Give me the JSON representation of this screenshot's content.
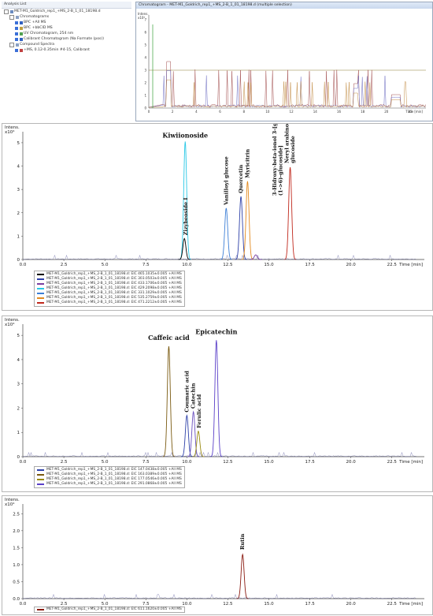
{
  "analysis_list": {
    "title": "Analysis List",
    "items": [
      {
        "label": "MET-M1_Goldrich_rep1_+MS_2-B_1_01_18198.d",
        "level": 0
      },
      {
        "label": "Chromatograms",
        "level": 1
      },
      {
        "label": "BPC +All MS",
        "level": 2
      },
      {
        "label": "BPC +bbCID MS",
        "level": 2
      },
      {
        "label": "UV Chromatogram, 254 nm",
        "level": 2
      },
      {
        "label": "Calibrant Chromatogram (Na Formate (pos))",
        "level": 2
      },
      {
        "label": "Compound Spectra",
        "level": 1
      },
      {
        "label": "+MS, 0.12-0.35min #4-15, Calibrant",
        "level": 2
      }
    ]
  },
  "overview": {
    "title": "Chromatogram - MET-M1_Goldrich_rep1_+MS_2-B_1_01_18198.d (multiple selection)",
    "y_label": "Intens.\nx10⁸",
    "y_ticks": [
      "0",
      "1",
      "2",
      "3",
      "4",
      "5",
      "6",
      "7"
    ],
    "x_ticks": [
      "0",
      "2",
      "4",
      "6",
      "8",
      "10",
      "12",
      "14",
      "16",
      "18",
      "20",
      "22"
    ],
    "x_unit": "Time [min]"
  },
  "chart_data": [
    {
      "type": "line",
      "y_label": "Intens.",
      "y_exp": "x10⁴",
      "xlabel": "Time [min]",
      "x_ticks": [
        "0.0",
        "2.5",
        "5.0",
        "7.5",
        "10.0",
        "12.5",
        "15.0",
        "17.5",
        "20.0",
        "22.5"
      ],
      "y_ticks": [
        "0",
        "1",
        "2",
        "3",
        "4",
        "5"
      ],
      "xlim": [
        0,
        24
      ],
      "ylim": [
        0,
        5.2
      ],
      "peaks": [
        {
          "label": "Kiwiionoside",
          "x": 9.9,
          "height": 5.05,
          "color": "#29c8e6"
        },
        {
          "label": "Zizybeoside I",
          "x": 9.85,
          "height": 0.9,
          "color": "#000000"
        },
        {
          "label": "Vanilloyl glucose",
          "x": 12.4,
          "height": 2.2,
          "color": "#3d7fd6"
        },
        {
          "label": "Quercetin",
          "x": 13.3,
          "height": 2.7,
          "color": "#2c3fa8"
        },
        {
          "label": "Myricitrin",
          "x": 13.7,
          "height": 3.35,
          "color": "#e38a1f"
        },
        {
          "label": "3-Hidroxy-beta-ionol 3-[glucosyl-(1->6)-glucoside]",
          "x": 14.2,
          "height": 0.2,
          "color": "#7a3fa0"
        },
        {
          "label": "Neryl arabinofuranosyl-glucoside",
          "x": 16.3,
          "height": 3.95,
          "color": "#c0281c"
        }
      ],
      "legend": [
        {
          "text": "MET-M1_Goldrich_rep1_+MS_2-B_1_01_18198.d: EIC 465.1035±0.005 +All MS",
          "color": "#000000"
        },
        {
          "text": "MET-M1_Goldrich_rep1_+MS_2-B_1_01_18198.d: EIC 303.0503±0.005 +All MS",
          "color": "#2c3fa8"
        },
        {
          "text": "MET-M1_Goldrich_rep1_+MS_2-B_1_01_18198.d: EIC 433.1706±0.005 +All MS",
          "color": "#7a3fa0"
        },
        {
          "text": "MET-M1_Goldrich_rep1_+MS_2-B_1_01_18198.d: EIC 429.2098±0.005 +All MS",
          "color": "#29c8e6"
        },
        {
          "text": "MET-M1_Goldrich_rep1_+MS_2-B_1_01_18198.d: EIC 331.1029±0.005 +All MS",
          "color": "#3d7fd6"
        },
        {
          "text": "MET-M1_Goldrich_rep1_+MS_2-B_1_01_18198.d: EIC 535.2759±0.005 +All MS",
          "color": "#e38a1f"
        },
        {
          "text": "MET-M1_Goldrich_rep1_+MS_2-B_1_01_18198.d: EIC 471.2212±0.005 +All MS",
          "color": "#c0281c"
        }
      ]
    },
    {
      "type": "line",
      "y_label": "Intens.",
      "y_exp": "x10⁴",
      "xlabel": "Time [min]",
      "x_ticks": [
        "0.0",
        "2.5",
        "5.0",
        "7.5",
        "10.0",
        "12.5",
        "15.0",
        "17.5",
        "20.0",
        "22.5"
      ],
      "y_ticks": [
        "0",
        "1",
        "2",
        "3",
        "4",
        "5"
      ],
      "xlim": [
        0,
        24
      ],
      "ylim": [
        0,
        5.2
      ],
      "peaks": [
        {
          "label": "Caffeic acid",
          "x": 8.9,
          "height": 4.55,
          "color": "#7a5a10"
        },
        {
          "label": "Coumaric acid",
          "x": 10.0,
          "height": 1.7,
          "color": "#2c3fa8"
        },
        {
          "label": "Catechin",
          "x": 10.4,
          "height": 1.85,
          "color": "#6a4fc0"
        },
        {
          "label": "Ferulic acid",
          "x": 10.7,
          "height": 1.05,
          "color": "#9a8a10"
        },
        {
          "label": "Epicatechin",
          "x": 11.8,
          "height": 4.8,
          "color": "#5a3fc8"
        }
      ],
      "legend": [
        {
          "text": "MET-M1_Goldrich_rep1_+MS_2-B_1_01_18198.d: EIC 147.0438±0.005 +All MS",
          "color": "#2c3fa8"
        },
        {
          "text": "MET-M1_Goldrich_rep1_+MS_2-B_1_01_18198.d: EIC 163.0389±0.005 +All MS",
          "color": "#7a5a10"
        },
        {
          "text": "MET-M1_Goldrich_rep1_+MS_2-B_1_01_18198.d: EIC 177.0546±0.005 +All MS",
          "color": "#9a8a10"
        },
        {
          "text": "MET-M1_Goldrich_rep1_+MS_2-B_1_01_18198.d: EIC 291.0868±0.005 +All MS",
          "color": "#5a3fc8"
        }
      ]
    },
    {
      "type": "line",
      "y_label": "Intens.",
      "y_exp": "x10⁴",
      "xlabel": "Time [min]",
      "x_ticks": [
        "0.0",
        "2.5",
        "5.0",
        "7.5",
        "10.0",
        "12.5",
        "15.0",
        "17.5",
        "20.0",
        "22.5"
      ],
      "y_ticks": [
        "0.0",
        "0.5",
        "1.0",
        "1.5",
        "2.0",
        "2.5"
      ],
      "xlim": [
        0,
        24
      ],
      "ylim": [
        0,
        2.6
      ],
      "peaks": [
        {
          "label": "Rutin",
          "x": 13.4,
          "height": 1.3,
          "color": "#8a1a10"
        }
      ],
      "legend": [
        {
          "text": "MET-M1_Goldrich_rep1_+MS_2-B_1_01_18198.d: EIC 611.1620±0.005 +All MS",
          "color": "#8a1a10"
        }
      ]
    }
  ]
}
